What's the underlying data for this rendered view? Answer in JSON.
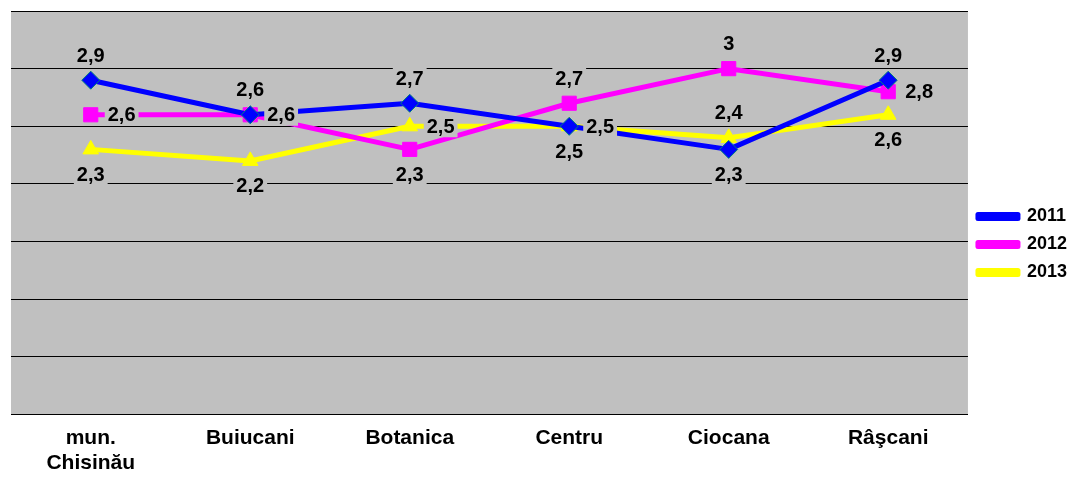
{
  "chart_data": {
    "type": "line",
    "categories": [
      "mun. Chisinău",
      "Buiucani",
      "Botanica",
      "Centru",
      "Ciocana",
      "Râşcani"
    ],
    "series": [
      {
        "name": "2011",
        "color": "#0000ff",
        "marker": "diamond",
        "values": [
          2.9,
          2.6,
          2.7,
          2.5,
          2.3,
          2.9
        ],
        "value_labels": [
          "2,9",
          "2,6",
          "2,7",
          "2,5",
          "2,3",
          "2,9"
        ]
      },
      {
        "name": "2012",
        "color": "#ff00ff",
        "marker": "square",
        "values": [
          2.6,
          2.6,
          2.3,
          2.7,
          3,
          2.8
        ],
        "value_labels": [
          "2,6",
          "2,6",
          "2,3",
          "2,7",
          "3",
          "2,8"
        ]
      },
      {
        "name": "2013",
        "color": "#ffff00",
        "marker": "triangle",
        "values": [
          2.3,
          2.2,
          2.5,
          2.5,
          2.4,
          2.6
        ],
        "value_labels": [
          "2,3",
          "2,2",
          "2,5",
          "2,5",
          "2,4",
          "2,6"
        ]
      }
    ],
    "ylim": [
      0,
      3.5
    ],
    "yticks": [
      {
        "value": 0,
        "label": null
      },
      {
        "value": 0.5,
        "label": null
      },
      {
        "value": 1,
        "label": null
      },
      {
        "value": 1.5,
        "label": null
      },
      {
        "value": 2,
        "label": null
      },
      {
        "value": 2.5,
        "label": null
      },
      {
        "value": 3,
        "label": null
      },
      {
        "value": 3.5,
        "label": null
      }
    ],
    "tick_labels": "x",
    "grid": "y",
    "legend": "right"
  }
}
